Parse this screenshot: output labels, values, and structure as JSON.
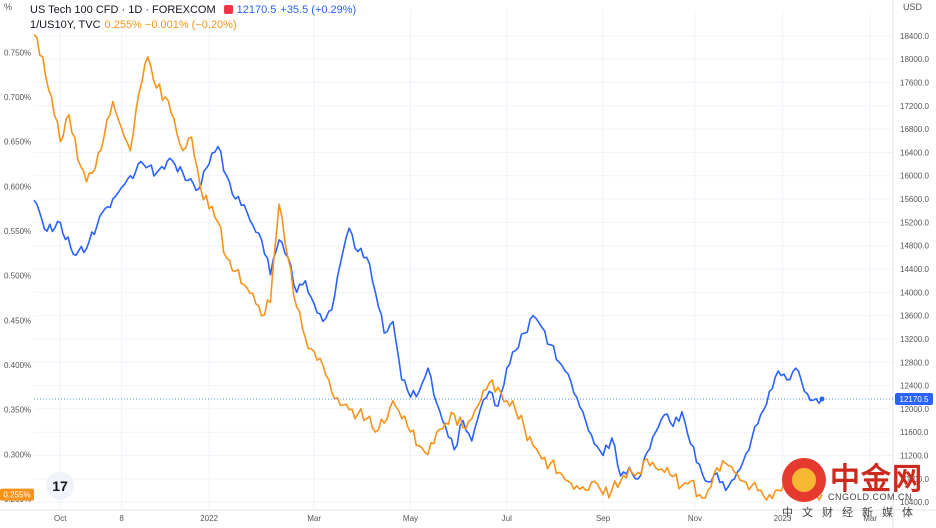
{
  "corner": {
    "left": "%",
    "right": "USD"
  },
  "legend": {
    "primary": {
      "symbol": "US Tech 100 CFD · 1D · FOREXCOM",
      "value": "12170.5",
      "change": "+35.5 (+0.29%)"
    },
    "secondary": {
      "symbol": "1/US10Y, TVC",
      "values": "0.255%  −0.001% (−0.20%)"
    }
  },
  "colors": {
    "nasdaq": "#2962ff",
    "yield": "#f7931a",
    "grid": "#f0f3fa",
    "axis_text": "#555555"
  },
  "tv_logo": "17",
  "watermark": {
    "title": "中金网",
    "url": "CNGOLD.COM.CN",
    "subtitle": "中文财经新媒体",
    "icon": "cngold-logo-icon"
  },
  "chart_data": {
    "type": "line",
    "x_ticks": [
      "Oct",
      "8",
      "2022",
      "Mar",
      "May",
      "Jul",
      "Sep",
      "Nov",
      "2023",
      "Mar"
    ],
    "x_tick_index": [
      6,
      20,
      40,
      64,
      86,
      108,
      130,
      151,
      171,
      191
    ],
    "x_range": [
      0,
      196
    ],
    "y_left": {
      "label": "%",
      "ticks": [
        "0.750%",
        "0.700%",
        "0.650%",
        "0.600%",
        "0.550%",
        "0.500%",
        "0.450%",
        "0.400%",
        "0.350%",
        "0.300%",
        "0.250%"
      ],
      "tick_values": [
        0.75,
        0.7,
        0.65,
        0.6,
        0.55,
        0.5,
        0.45,
        0.4,
        0.35,
        0.3,
        0.25
      ],
      "range": [
        0.24,
        0.775
      ]
    },
    "y_right": {
      "label": "USD",
      "ticks": [
        "18400.0",
        "18000.0",
        "17600.0",
        "17200.0",
        "16800.0",
        "16400.0",
        "16000.0",
        "15600.0",
        "15200.0",
        "14800.0",
        "14400.0",
        "14000.0",
        "13600.0",
        "13200.0",
        "12800.0",
        "12400.0",
        "12000.0",
        "11600.0",
        "11200.0",
        "10800.0",
        "10400.0"
      ],
      "tick_values": [
        18400,
        18000,
        17600,
        17200,
        16800,
        16400,
        16000,
        15600,
        15200,
        14800,
        14400,
        14000,
        13600,
        13200,
        12800,
        12400,
        12000,
        11600,
        11200,
        10800,
        10400
      ],
      "range": [
        10300,
        18500
      ]
    },
    "last_labels": {
      "nasdaq": "12170.5",
      "yield": "0.255%"
    },
    "series": [
      {
        "name": "US Tech 100 CFD",
        "axis": "right",
        "anchors": [
          [
            0,
            15580
          ],
          [
            3,
            15050
          ],
          [
            6,
            15200
          ],
          [
            9,
            14650
          ],
          [
            12,
            14750
          ],
          [
            15,
            15300
          ],
          [
            18,
            15600
          ],
          [
            20,
            15800
          ],
          [
            22,
            16000
          ],
          [
            25,
            16200
          ],
          [
            28,
            16050
          ],
          [
            31,
            16300
          ],
          [
            34,
            16050
          ],
          [
            37,
            15750
          ],
          [
            40,
            16200
          ],
          [
            42,
            16500
          ],
          [
            44,
            16000
          ],
          [
            46,
            15600
          ],
          [
            48,
            15500
          ],
          [
            50,
            15150
          ],
          [
            52,
            14900
          ],
          [
            54,
            14300
          ],
          [
            56,
            14900
          ],
          [
            58,
            14600
          ],
          [
            60,
            14000
          ],
          [
            62,
            14200
          ],
          [
            64,
            13800
          ],
          [
            66,
            13500
          ],
          [
            68,
            13700
          ],
          [
            70,
            14500
          ],
          [
            72,
            15100
          ],
          [
            74,
            14700
          ],
          [
            76,
            14600
          ],
          [
            78,
            14000
          ],
          [
            80,
            13300
          ],
          [
            82,
            13500
          ],
          [
            84,
            12500
          ],
          [
            86,
            12200
          ],
          [
            88,
            12300
          ],
          [
            90,
            12700
          ],
          [
            92,
            12100
          ],
          [
            94,
            11700
          ],
          [
            96,
            11300
          ],
          [
            98,
            11800
          ],
          [
            100,
            11450
          ],
          [
            102,
            12000
          ],
          [
            104,
            12300
          ],
          [
            106,
            12050
          ],
          [
            108,
            12700
          ],
          [
            110,
            13000
          ],
          [
            112,
            13300
          ],
          [
            114,
            13600
          ],
          [
            116,
            13400
          ],
          [
            118,
            13100
          ],
          [
            120,
            12800
          ],
          [
            122,
            12600
          ],
          [
            124,
            12200
          ],
          [
            126,
            11800
          ],
          [
            128,
            11400
          ],
          [
            130,
            11200
          ],
          [
            132,
            11500
          ],
          [
            134,
            10850
          ],
          [
            136,
            11000
          ],
          [
            138,
            10800
          ],
          [
            140,
            11250
          ],
          [
            142,
            11600
          ],
          [
            144,
            11900
          ],
          [
            146,
            11700
          ],
          [
            148,
            11950
          ],
          [
            150,
            11400
          ],
          [
            152,
            11050
          ],
          [
            154,
            10750
          ],
          [
            156,
            10900
          ],
          [
            158,
            10600
          ],
          [
            160,
            10800
          ],
          [
            162,
            11100
          ],
          [
            164,
            11500
          ],
          [
            166,
            11900
          ],
          [
            168,
            12300
          ],
          [
            170,
            12650
          ],
          [
            172,
            12500
          ],
          [
            174,
            12700
          ],
          [
            176,
            12300
          ],
          [
            178,
            12150
          ],
          [
            180,
            12170.5
          ]
        ]
      },
      {
        "name": "1/US10Y",
        "axis": "left",
        "anchors": [
          [
            0,
            0.77
          ],
          [
            2,
            0.745
          ],
          [
            4,
            0.7
          ],
          [
            6,
            0.65
          ],
          [
            8,
            0.68
          ],
          [
            10,
            0.63
          ],
          [
            12,
            0.605
          ],
          [
            14,
            0.62
          ],
          [
            16,
            0.655
          ],
          [
            18,
            0.695
          ],
          [
            20,
            0.665
          ],
          [
            22,
            0.64
          ],
          [
            24,
            0.705
          ],
          [
            26,
            0.745
          ],
          [
            28,
            0.71
          ],
          [
            30,
            0.7
          ],
          [
            32,
            0.675
          ],
          [
            34,
            0.64
          ],
          [
            36,
            0.655
          ],
          [
            38,
            0.6
          ],
          [
            40,
            0.575
          ],
          [
            42,
            0.56
          ],
          [
            44,
            0.52
          ],
          [
            46,
            0.505
          ],
          [
            48,
            0.49
          ],
          [
            50,
            0.48
          ],
          [
            52,
            0.455
          ],
          [
            54,
            0.47
          ],
          [
            56,
            0.58
          ],
          [
            58,
            0.52
          ],
          [
            60,
            0.465
          ],
          [
            62,
            0.43
          ],
          [
            64,
            0.415
          ],
          [
            66,
            0.4
          ],
          [
            68,
            0.37
          ],
          [
            70,
            0.355
          ],
          [
            72,
            0.35
          ],
          [
            74,
            0.345
          ],
          [
            76,
            0.34
          ],
          [
            78,
            0.325
          ],
          [
            80,
            0.335
          ],
          [
            82,
            0.36
          ],
          [
            84,
            0.34
          ],
          [
            86,
            0.325
          ],
          [
            88,
            0.31
          ],
          [
            90,
            0.3
          ],
          [
            92,
            0.325
          ],
          [
            94,
            0.335
          ],
          [
            96,
            0.345
          ],
          [
            98,
            0.33
          ],
          [
            100,
            0.34
          ],
          [
            102,
            0.36
          ],
          [
            104,
            0.38
          ],
          [
            106,
            0.375
          ],
          [
            108,
            0.36
          ],
          [
            110,
            0.35
          ],
          [
            112,
            0.33
          ],
          [
            114,
            0.31
          ],
          [
            116,
            0.295
          ],
          [
            118,
            0.29
          ],
          [
            120,
            0.28
          ],
          [
            122,
            0.27
          ],
          [
            124,
            0.265
          ],
          [
            126,
            0.26
          ],
          [
            128,
            0.27
          ],
          [
            130,
            0.255
          ],
          [
            132,
            0.26
          ],
          [
            134,
            0.27
          ],
          [
            136,
            0.285
          ],
          [
            138,
            0.28
          ],
          [
            140,
            0.295
          ],
          [
            142,
            0.285
          ],
          [
            144,
            0.28
          ],
          [
            146,
            0.275
          ],
          [
            148,
            0.265
          ],
          [
            150,
            0.27
          ],
          [
            152,
            0.255
          ],
          [
            154,
            0.26
          ],
          [
            156,
            0.285
          ],
          [
            158,
            0.29
          ],
          [
            160,
            0.28
          ],
          [
            162,
            0.27
          ],
          [
            164,
            0.265
          ],
          [
            166,
            0.26
          ],
          [
            168,
            0.255
          ],
          [
            170,
            0.26
          ],
          [
            172,
            0.265
          ],
          [
            174,
            0.262
          ],
          [
            176,
            0.258
          ],
          [
            178,
            0.255
          ],
          [
            180,
            0.255
          ]
        ]
      }
    ]
  }
}
